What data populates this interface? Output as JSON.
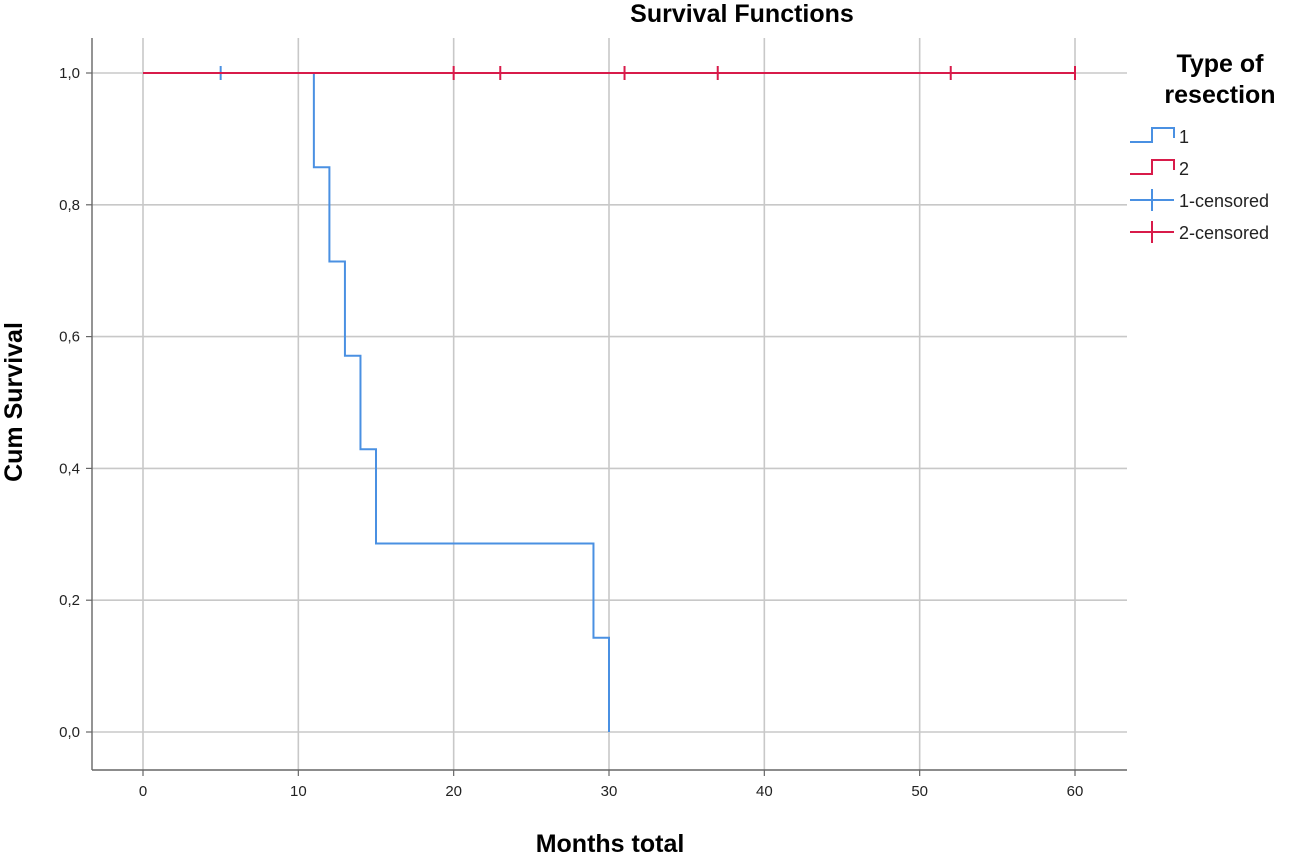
{
  "chart_data": {
    "type": "line",
    "title": "Survival Functions",
    "xlabel": "Months total",
    "ylabel": "Cum Survival",
    "xlim": [
      0,
      60
    ],
    "ylim": [
      0.0,
      1.0
    ],
    "x_ticks": [
      0,
      10,
      20,
      30,
      40,
      50,
      60
    ],
    "y_ticks": [
      0.0,
      0.2,
      0.4,
      0.6,
      0.8,
      1.0
    ],
    "y_tick_labels": [
      "0,0",
      "0,2",
      "0,4",
      "0,6",
      "0,8",
      "1,0"
    ],
    "grid": true,
    "step": true,
    "legend": {
      "title": "Type of resection",
      "position": "right",
      "entries": [
        {
          "label": "1",
          "kind": "step",
          "color": "#4a90e2"
        },
        {
          "label": "2",
          "kind": "step",
          "color": "#d81b4a"
        },
        {
          "label": "1-censored",
          "kind": "cross",
          "color": "#4a90e2"
        },
        {
          "label": "2-censored",
          "kind": "cross",
          "color": "#d81b4a"
        }
      ]
    },
    "series": [
      {
        "name": "1",
        "color": "#4a90e2",
        "steps": [
          [
            0,
            1.0
          ],
          [
            11,
            0.857
          ],
          [
            12,
            0.714
          ],
          [
            13,
            0.571
          ],
          [
            14,
            0.429
          ],
          [
            15,
            0.286
          ],
          [
            29,
            0.143
          ],
          [
            30,
            0.0
          ]
        ],
        "censored": [
          [
            5,
            1.0
          ]
        ]
      },
      {
        "name": "2",
        "color": "#d81b4a",
        "steps": [
          [
            0,
            1.0
          ],
          [
            60,
            1.0
          ]
        ],
        "censored": [
          [
            20,
            1.0
          ],
          [
            23,
            1.0
          ],
          [
            31,
            1.0
          ],
          [
            37,
            1.0
          ],
          [
            52,
            1.0
          ],
          [
            60,
            1.0
          ]
        ]
      }
    ]
  },
  "colors": {
    "grid": "#c8c8c8",
    "axis": "#666666"
  }
}
